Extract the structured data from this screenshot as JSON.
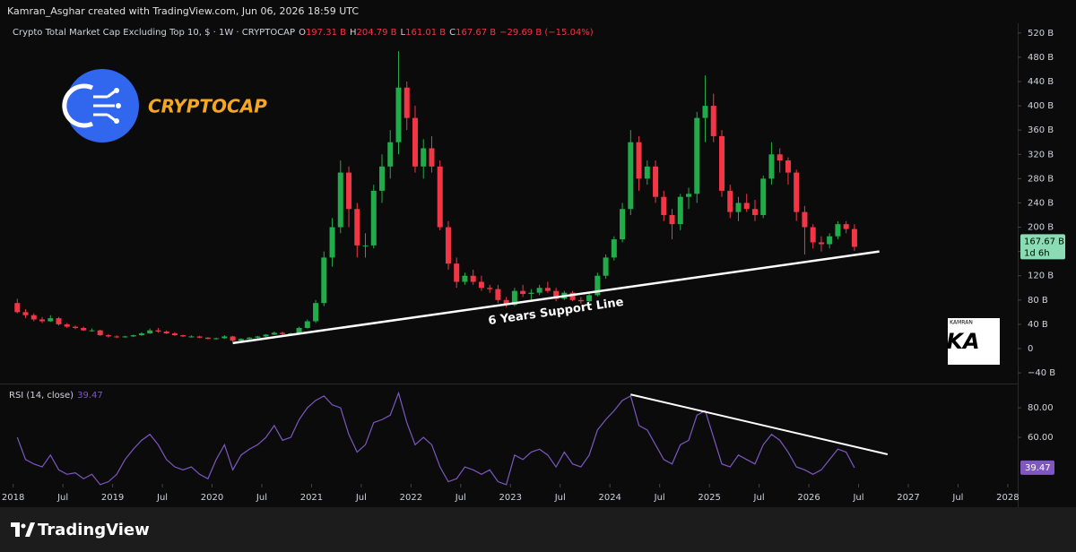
{
  "header": {
    "credit": "Kamran_Asghar created with TradingView.com, Jun 06, 2026 18:59 UTC"
  },
  "footer": {
    "brand": "TradingView"
  },
  "watermark": {
    "text": "CRYPTOCAP",
    "signature_top": "KAMRAN",
    "signature": "KA"
  },
  "chart_data": {
    "type": "candlestick",
    "title": "Crypto Total Market Cap Excluding Top 10, $ · 1W · CRYPTOCAP",
    "ohlc_legend": [
      {
        "key": "O",
        "value": "197.31 B"
      },
      {
        "key": "H",
        "value": "204.79 B"
      },
      {
        "key": "L",
        "value": "161.01 B"
      },
      {
        "key": "C",
        "value": "167.67 B"
      }
    ],
    "change": "−29.69 B (−15.04%)",
    "up_color": "#22ab4a",
    "down_color": "#f23645",
    "x": [
      "2018-01",
      "2018-02",
      "2018-03",
      "2018-04",
      "2018-05",
      "2018-06",
      "2018-07",
      "2018-08",
      "2018-09",
      "2018-10",
      "2018-11",
      "2018-12",
      "2019-01",
      "2019-02",
      "2019-03",
      "2019-04",
      "2019-05",
      "2019-06",
      "2019-07",
      "2019-08",
      "2019-09",
      "2019-10",
      "2019-11",
      "2019-12",
      "2020-01",
      "2020-02",
      "2020-03",
      "2020-04",
      "2020-05",
      "2020-06",
      "2020-07",
      "2020-08",
      "2020-09",
      "2020-10",
      "2020-11",
      "2020-12",
      "2021-01",
      "2021-02",
      "2021-03",
      "2021-04",
      "2021-05",
      "2021-06",
      "2021-07",
      "2021-08",
      "2021-09",
      "2021-10",
      "2021-11",
      "2021-12",
      "2022-01",
      "2022-02",
      "2022-03",
      "2022-04",
      "2022-05",
      "2022-06",
      "2022-07",
      "2022-08",
      "2022-09",
      "2022-10",
      "2022-11",
      "2022-12",
      "2023-01",
      "2023-02",
      "2023-03",
      "2023-04",
      "2023-05",
      "2023-06",
      "2023-07",
      "2023-08",
      "2023-09",
      "2023-10",
      "2023-11",
      "2023-12",
      "2024-01",
      "2024-02",
      "2024-03",
      "2024-04",
      "2024-05",
      "2024-06",
      "2024-07",
      "2024-08",
      "2024-09",
      "2024-10",
      "2024-11",
      "2024-12",
      "2025-01",
      "2025-02",
      "2025-03",
      "2025-04",
      "2025-05",
      "2025-06",
      "2025-07",
      "2025-08",
      "2025-09",
      "2025-10",
      "2025-11",
      "2025-12",
      "2026-01",
      "2026-02",
      "2026-03",
      "2026-04",
      "2026-05",
      "2026-06"
    ],
    "open": [
      75,
      60,
      55,
      48,
      45,
      50,
      40,
      36,
      34,
      30,
      30,
      22,
      20,
      19,
      20,
      22,
      25,
      30,
      28,
      25,
      22,
      20,
      20,
      18,
      16,
      17,
      20,
      13,
      16,
      18,
      20,
      23,
      26,
      24,
      25,
      34,
      45,
      75,
      150,
      200,
      290,
      230,
      170,
      170,
      260,
      300,
      340,
      430,
      380,
      300,
      330,
      300,
      200,
      140,
      110,
      120,
      110,
      100,
      98,
      80,
      72,
      95,
      90,
      92,
      100,
      95,
      82,
      92,
      80,
      78,
      88,
      120,
      150,
      180,
      230,
      340,
      280,
      300,
      250,
      220,
      205,
      250,
      255,
      380,
      400,
      350,
      260,
      225,
      240,
      230,
      220,
      280,
      320,
      310,
      290,
      225,
      200,
      175,
      172,
      185,
      205,
      197
    ],
    "high": [
      82,
      65,
      58,
      52,
      55,
      52,
      42,
      38,
      36,
      33,
      31,
      24,
      22,
      21,
      23,
      27,
      33,
      34,
      30,
      27,
      23,
      22,
      21,
      19,
      18,
      22,
      21,
      17,
      19,
      21,
      24,
      28,
      28,
      26,
      36,
      48,
      80,
      160,
      215,
      310,
      300,
      240,
      190,
      270,
      320,
      360,
      490,
      440,
      400,
      345,
      350,
      310,
      210,
      150,
      125,
      130,
      120,
      105,
      105,
      85,
      100,
      105,
      98,
      105,
      110,
      100,
      95,
      95,
      85,
      92,
      125,
      155,
      185,
      240,
      360,
      350,
      310,
      310,
      260,
      230,
      255,
      265,
      390,
      450,
      420,
      360,
      270,
      250,
      255,
      245,
      285,
      340,
      330,
      315,
      295,
      235,
      205,
      185,
      190,
      210,
      210,
      204.79
    ],
    "low": [
      58,
      50,
      45,
      42,
      44,
      38,
      34,
      32,
      29,
      28,
      21,
      18,
      17,
      18,
      19,
      21,
      24,
      26,
      24,
      21,
      19,
      18,
      17,
      15,
      15,
      16,
      11,
      12,
      15,
      17,
      19,
      22,
      22,
      22,
      24,
      33,
      42,
      70,
      135,
      190,
      200,
      150,
      150,
      165,
      240,
      280,
      320,
      360,
      290,
      280,
      290,
      195,
      130,
      100,
      105,
      105,
      95,
      92,
      75,
      68,
      70,
      85,
      80,
      88,
      92,
      78,
      80,
      78,
      74,
      76,
      86,
      115,
      145,
      175,
      220,
      260,
      270,
      240,
      210,
      180,
      195,
      230,
      240,
      340,
      340,
      250,
      215,
      210,
      225,
      210,
      215,
      270,
      290,
      270,
      210,
      155,
      165,
      160,
      165,
      180,
      190,
      161.01
    ],
    "close": [
      60,
      55,
      48,
      45,
      50,
      40,
      36,
      34,
      30,
      30,
      22,
      20,
      19,
      20,
      22,
      25,
      30,
      28,
      25,
      22,
      20,
      20,
      18,
      16,
      17,
      20,
      13,
      16,
      18,
      20,
      23,
      26,
      24,
      25,
      34,
      45,
      75,
      150,
      200,
      290,
      230,
      170,
      170,
      260,
      300,
      340,
      430,
      380,
      300,
      330,
      300,
      200,
      140,
      110,
      120,
      110,
      100,
      98,
      80,
      72,
      95,
      90,
      92,
      100,
      95,
      82,
      92,
      80,
      78,
      88,
      120,
      150,
      180,
      230,
      340,
      280,
      300,
      250,
      220,
      205,
      250,
      255,
      380,
      400,
      350,
      260,
      225,
      240,
      230,
      220,
      280,
      320,
      310,
      290,
      225,
      200,
      175,
      172,
      185,
      205,
      197,
      167.67
    ],
    "last_price": {
      "value": 167.67,
      "label": "167.67 B",
      "countdown": "1d 6h"
    },
    "xlim": [
      2017.94,
      2028.1
    ],
    "xticks": [
      2018,
      {
        "value": 2018.5,
        "label": "Jul"
      },
      2019,
      {
        "value": 2019.5,
        "label": "Jul"
      },
      2020,
      {
        "value": 2020.5,
        "label": "Jul"
      },
      2021,
      {
        "value": 2021.5,
        "label": "Jul"
      },
      2022,
      {
        "value": 2022.5,
        "label": "Jul"
      },
      2023,
      {
        "value": 2023.5,
        "label": "Jul"
      },
      2024,
      {
        "value": 2024.5,
        "label": "Jul"
      },
      2025,
      {
        "value": 2025.5,
        "label": "Jul"
      },
      2026,
      {
        "value": 2026.5,
        "label": "Jul"
      },
      2027,
      {
        "value": 2027.5,
        "label": "Jul"
      },
      2028
    ],
    "ylim": [
      -57.6,
      533
    ],
    "yticks": [
      {
        "value": -40,
        "label": "−40 B"
      },
      0,
      {
        "value": 40,
        "label": "40 B"
      },
      {
        "value": 80,
        "label": "80 B"
      },
      {
        "value": 120,
        "label": "120 B"
      },
      {
        "value": 160,
        "label": "160 B"
      },
      {
        "value": 200,
        "label": "200 B"
      },
      {
        "value": 240,
        "label": "240 B"
      },
      {
        "value": 280,
        "label": "280 B"
      },
      {
        "value": 320,
        "label": "320 B"
      },
      {
        "value": 360,
        "label": "360 B"
      },
      {
        "value": 400,
        "label": "400 B"
      },
      {
        "value": 440,
        "label": "440 B"
      },
      {
        "value": 480,
        "label": "480 B"
      },
      {
        "value": 520,
        "label": "520 B"
      }
    ],
    "support_line": {
      "text": "6 Years Support Line",
      "x": [
        "2020-03",
        "2026-09"
      ],
      "y": [
        9,
        160
      ]
    },
    "rsi": {
      "name": "RSI (14, close)",
      "color": "#7e57c2",
      "values": [
        60,
        45,
        42,
        40,
        48,
        38,
        35,
        36,
        32,
        35,
        28,
        30,
        35,
        45,
        52,
        58,
        62,
        55,
        45,
        40,
        38,
        40,
        35,
        32,
        45,
        55,
        38,
        48,
        52,
        55,
        60,
        68,
        58,
        60,
        72,
        80,
        85,
        88,
        82,
        80,
        62,
        50,
        55,
        70,
        72,
        75,
        90,
        70,
        55,
        60,
        55,
        40,
        30,
        32,
        40,
        38,
        35,
        38,
        30,
        28,
        48,
        45,
        50,
        52,
        48,
        40,
        50,
        42,
        40,
        48,
        65,
        72,
        78,
        85,
        88,
        68,
        65,
        55,
        45,
        42,
        55,
        58,
        75,
        78,
        60,
        42,
        40,
        48,
        45,
        42,
        55,
        62,
        58,
        50,
        40,
        38,
        35,
        38,
        45,
        52,
        50,
        39.47
      ],
      "ylim": [
        28.5,
        95.2
      ],
      "yticks": [
        {
          "value": 60,
          "label": "60.00"
        },
        {
          "value": 80,
          "label": "80.00"
        }
      ],
      "trend_line": {
        "x": [
          "2024-03",
          "2026-10"
        ],
        "y": [
          89,
          48.5
        ]
      }
    }
  }
}
